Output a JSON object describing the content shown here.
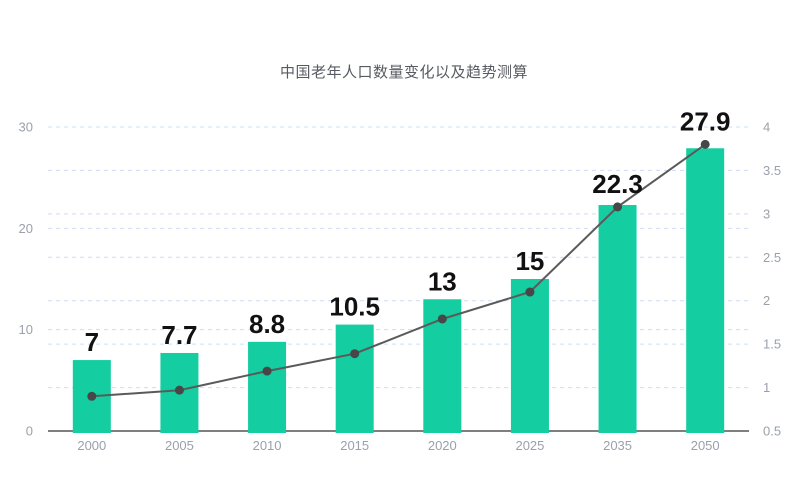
{
  "chart_data": {
    "type": "bar",
    "title": "中国老年人口数量变化以及趋势测算",
    "categories": [
      "2000",
      "2005",
      "2010",
      "2015",
      "2020",
      "2025",
      "2035",
      "2050"
    ],
    "series": [
      {
        "type": "bar",
        "axis": "left",
        "values": [
          7,
          7.7,
          8.8,
          10.5,
          13,
          15,
          22.3,
          27.9
        ],
        "labels": [
          "7",
          "7.7",
          "8.8",
          "10.5",
          "13",
          "15",
          "22.3",
          "27.9"
        ],
        "color": "#14CDA0"
      },
      {
        "type": "line",
        "axis": "right",
        "values": [
          0.9,
          0.97,
          1.19,
          1.39,
          1.79,
          2.1,
          3.08,
          3.8
        ],
        "color": "#5A5A5A",
        "marker_color": "#474747"
      }
    ],
    "left_axis": {
      "range": [
        0,
        30
      ],
      "tick_values": [
        0,
        10,
        20,
        30
      ],
      "ticks": [
        "0",
        "10",
        "20",
        "30"
      ]
    },
    "right_axis": {
      "range": [
        0.5,
        4
      ],
      "tick_values": [
        0.5,
        1,
        1.5,
        2,
        2.5,
        3,
        3.5,
        4
      ],
      "ticks": [
        "0.5",
        "1",
        "1.5",
        "2",
        "2.5",
        "3",
        "3.5",
        "4"
      ]
    },
    "grid": {
      "show": true,
      "style": "dashed",
      "color": "#CBDCF7"
    },
    "legend_position": "none",
    "colors": {
      "bar": "#14CDA0",
      "line": "#5A5A5A",
      "marker": "#474747",
      "axis_line": "#555555",
      "tick_label": "#9AA1AC",
      "value_label": "#111111",
      "title": "#575B61",
      "background": "#FFFFFF"
    }
  }
}
